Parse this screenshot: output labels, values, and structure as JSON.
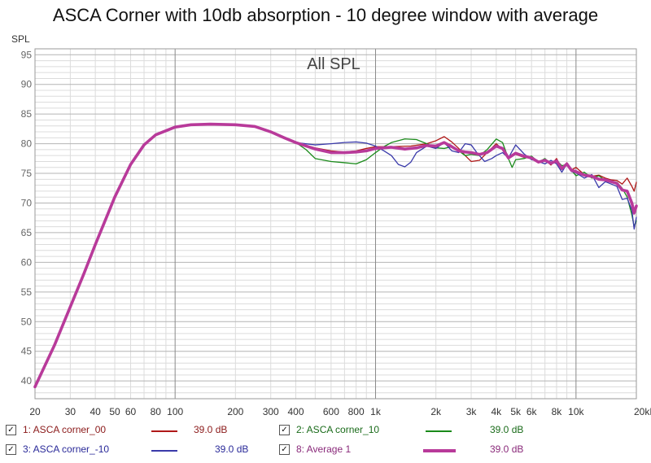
{
  "chart_data": {
    "type": "line",
    "title": "ASCA Corner with 10db absorption - 10 degree window with average",
    "inner_title": "All SPL",
    "ylabel": "SPL",
    "xscale": "log",
    "xlim": [
      20,
      20000
    ],
    "ylim": [
      37,
      96
    ],
    "grid": true,
    "yticks": [
      40,
      45,
      50,
      55,
      60,
      65,
      70,
      75,
      80,
      85,
      90,
      95
    ],
    "ytick_labels": [
      "40",
      "45",
      "50",
      "55",
      "60",
      "65",
      "70",
      "75",
      "80",
      "85",
      "90",
      "95"
    ],
    "xticks": [
      20,
      30,
      40,
      50,
      60,
      80,
      100,
      200,
      300,
      400,
      600,
      800,
      1000,
      2000,
      3000,
      4000,
      5000,
      6000,
      8000,
      10000,
      20000
    ],
    "xtick_labels": [
      "20",
      "30",
      "40",
      "50",
      "60",
      "80",
      "100",
      "200",
      "300",
      "400",
      "600",
      "800",
      "1k",
      "2k",
      "3k",
      "4k",
      "5k",
      "6k",
      "8k",
      "10k",
      "20kHz"
    ],
    "series": [
      {
        "name": "1: ASCA corner_00",
        "color": "#b01818",
        "width": 1.3,
        "points": [
          [
            20,
            39
          ],
          [
            25,
            46
          ],
          [
            30,
            52.5
          ],
          [
            35,
            58
          ],
          [
            40,
            63
          ],
          [
            50,
            71
          ],
          [
            60,
            76.5
          ],
          [
            70,
            79.8
          ],
          [
            80,
            81.5
          ],
          [
            100,
            82.8
          ],
          [
            120,
            83.2
          ],
          [
            150,
            83.3
          ],
          [
            200,
            83.2
          ],
          [
            250,
            82.9
          ],
          [
            300,
            82
          ],
          [
            350,
            81
          ],
          [
            400,
            80.2
          ],
          [
            500,
            79.3
          ],
          [
            600,
            78.8
          ],
          [
            700,
            78.6
          ],
          [
            800,
            78.8
          ],
          [
            900,
            79.2
          ],
          [
            1000,
            79.5
          ],
          [
            1200,
            79.5
          ],
          [
            1500,
            79.6
          ],
          [
            1800,
            80
          ],
          [
            2000,
            80.5
          ],
          [
            2200,
            81.2
          ],
          [
            2400,
            80.3
          ],
          [
            2600,
            79.2
          ],
          [
            2800,
            78
          ],
          [
            3000,
            77
          ],
          [
            3300,
            77.2
          ],
          [
            3600,
            78.5
          ],
          [
            4000,
            80
          ],
          [
            4300,
            79
          ],
          [
            4600,
            77.8
          ],
          [
            5000,
            78.2
          ],
          [
            5500,
            77.7
          ],
          [
            6000,
            77.6
          ],
          [
            6500,
            76.8
          ],
          [
            7000,
            77.3
          ],
          [
            7500,
            76.4
          ],
          [
            8000,
            77.5
          ],
          [
            8500,
            75.8
          ],
          [
            9000,
            76.8
          ],
          [
            9500,
            75.6
          ],
          [
            10000,
            76
          ],
          [
            11000,
            74.8
          ],
          [
            12000,
            74.5
          ],
          [
            13000,
            74.7
          ],
          [
            14000,
            74.2
          ],
          [
            15000,
            73.9
          ],
          [
            16000,
            73.8
          ],
          [
            17000,
            73.2
          ],
          [
            18000,
            74.2
          ],
          [
            19000,
            72.8
          ],
          [
            19500,
            72
          ],
          [
            20000,
            73.5
          ]
        ]
      },
      {
        "name": "2: ASCA corner_10",
        "color": "#1a8a1a",
        "width": 1.3,
        "points": [
          [
            20,
            39
          ],
          [
            25,
            46
          ],
          [
            30,
            52.5
          ],
          [
            35,
            58
          ],
          [
            40,
            63
          ],
          [
            50,
            71
          ],
          [
            60,
            76.5
          ],
          [
            70,
            79.8
          ],
          [
            80,
            81.5
          ],
          [
            100,
            82.8
          ],
          [
            120,
            83.2
          ],
          [
            150,
            83.3
          ],
          [
            200,
            83.2
          ],
          [
            250,
            82.9
          ],
          [
            300,
            82
          ],
          [
            350,
            81
          ],
          [
            400,
            80.2
          ],
          [
            450,
            79
          ],
          [
            500,
            77.5
          ],
          [
            600,
            77
          ],
          [
            700,
            76.8
          ],
          [
            800,
            76.6
          ],
          [
            900,
            77.3
          ],
          [
            1000,
            78.5
          ],
          [
            1100,
            79.5
          ],
          [
            1200,
            80.2
          ],
          [
            1400,
            80.8
          ],
          [
            1600,
            80.7
          ],
          [
            1800,
            80
          ],
          [
            2000,
            79.3
          ],
          [
            2200,
            79.2
          ],
          [
            2400,
            79.5
          ],
          [
            2600,
            78.8
          ],
          [
            2800,
            78
          ],
          [
            3000,
            78.2
          ],
          [
            3300,
            78
          ],
          [
            3600,
            79
          ],
          [
            4000,
            80.8
          ],
          [
            4300,
            80.2
          ],
          [
            4600,
            77.5
          ],
          [
            4800,
            76
          ],
          [
            5000,
            77.3
          ],
          [
            5500,
            77.5
          ],
          [
            6000,
            77.9
          ],
          [
            6500,
            76.9
          ],
          [
            7000,
            77.5
          ],
          [
            7500,
            76.6
          ],
          [
            8000,
            77.2
          ],
          [
            8500,
            76.3
          ],
          [
            9000,
            76.5
          ],
          [
            9500,
            75.5
          ],
          [
            10000,
            74.6
          ],
          [
            11000,
            75.2
          ],
          [
            12000,
            74.2
          ],
          [
            13000,
            74.6
          ],
          [
            14000,
            73.8
          ],
          [
            15000,
            73.6
          ],
          [
            16000,
            73.5
          ],
          [
            17000,
            72.5
          ],
          [
            18000,
            71
          ],
          [
            19000,
            68
          ],
          [
            19500,
            66
          ],
          [
            20000,
            67
          ]
        ]
      },
      {
        "name": "3: ASCA corner_-10",
        "color": "#3a3aaa",
        "width": 1.3,
        "points": [
          [
            20,
            39
          ],
          [
            25,
            46
          ],
          [
            30,
            52.5
          ],
          [
            35,
            58
          ],
          [
            40,
            63
          ],
          [
            50,
            71
          ],
          [
            60,
            76.5
          ],
          [
            70,
            79.8
          ],
          [
            80,
            81.5
          ],
          [
            100,
            82.8
          ],
          [
            120,
            83.2
          ],
          [
            150,
            83.3
          ],
          [
            200,
            83.2
          ],
          [
            250,
            82.9
          ],
          [
            300,
            82
          ],
          [
            350,
            81
          ],
          [
            400,
            80.2
          ],
          [
            500,
            79.8
          ],
          [
            600,
            80
          ],
          [
            700,
            80.2
          ],
          [
            800,
            80.3
          ],
          [
            900,
            80.1
          ],
          [
            1000,
            79.6
          ],
          [
            1100,
            78.8
          ],
          [
            1200,
            78
          ],
          [
            1300,
            76.5
          ],
          [
            1400,
            76.1
          ],
          [
            1500,
            76.9
          ],
          [
            1600,
            78.5
          ],
          [
            1800,
            79.6
          ],
          [
            2000,
            79.2
          ],
          [
            2200,
            80.2
          ],
          [
            2400,
            78.8
          ],
          [
            2600,
            78.5
          ],
          [
            2800,
            80
          ],
          [
            3000,
            79.8
          ],
          [
            3200,
            78.5
          ],
          [
            3500,
            77
          ],
          [
            3800,
            77.5
          ],
          [
            4000,
            78
          ],
          [
            4300,
            78.5
          ],
          [
            4600,
            77.6
          ],
          [
            5000,
            79.8
          ],
          [
            5500,
            78.3
          ],
          [
            6000,
            77.3
          ],
          [
            6500,
            77
          ],
          [
            7000,
            76.6
          ],
          [
            7500,
            77.2
          ],
          [
            8000,
            76.6
          ],
          [
            8500,
            75.2
          ],
          [
            9000,
            76.6
          ],
          [
            9500,
            75.3
          ],
          [
            10000,
            75.1
          ],
          [
            11000,
            74.2
          ],
          [
            12000,
            74.8
          ],
          [
            13000,
            72.6
          ],
          [
            14000,
            73.6
          ],
          [
            15000,
            73.2
          ],
          [
            16000,
            72.8
          ],
          [
            17000,
            70.6
          ],
          [
            18000,
            70.8
          ],
          [
            19000,
            68.8
          ],
          [
            19500,
            65.6
          ],
          [
            20000,
            67.6
          ]
        ]
      },
      {
        "name": "8: Average 1",
        "color": "#b83a9a",
        "width": 3.6,
        "points": [
          [
            20,
            39
          ],
          [
            25,
            46
          ],
          [
            30,
            52.5
          ],
          [
            35,
            58
          ],
          [
            40,
            63
          ],
          [
            50,
            71
          ],
          [
            60,
            76.5
          ],
          [
            70,
            79.8
          ],
          [
            80,
            81.5
          ],
          [
            100,
            82.8
          ],
          [
            120,
            83.2
          ],
          [
            150,
            83.3
          ],
          [
            200,
            83.2
          ],
          [
            250,
            82.9
          ],
          [
            300,
            82
          ],
          [
            350,
            81
          ],
          [
            400,
            80.2
          ],
          [
            500,
            79.1
          ],
          [
            600,
            78.5
          ],
          [
            700,
            78.5
          ],
          [
            800,
            78.6
          ],
          [
            900,
            78.8
          ],
          [
            1000,
            79.2
          ],
          [
            1200,
            79.4
          ],
          [
            1400,
            79.1
          ],
          [
            1600,
            79.3
          ],
          [
            1800,
            79.7
          ],
          [
            2000,
            79.6
          ],
          [
            2200,
            80.2
          ],
          [
            2400,
            79.5
          ],
          [
            2600,
            78.8
          ],
          [
            2800,
            78.6
          ],
          [
            3000,
            78.5
          ],
          [
            3300,
            78.2
          ],
          [
            3600,
            78.5
          ],
          [
            4000,
            79.6
          ],
          [
            4300,
            79.2
          ],
          [
            4600,
            77.6
          ],
          [
            5000,
            78.4
          ],
          [
            5500,
            77.9
          ],
          [
            6000,
            77.6
          ],
          [
            6500,
            76.9
          ],
          [
            7000,
            77.2
          ],
          [
            7500,
            76.7
          ],
          [
            8000,
            77.1
          ],
          [
            8500,
            75.8
          ],
          [
            9000,
            76.6
          ],
          [
            9500,
            75.5
          ],
          [
            10000,
            75.3
          ],
          [
            11000,
            74.7
          ],
          [
            12000,
            74.5
          ],
          [
            13000,
            74
          ],
          [
            14000,
            73.9
          ],
          [
            15000,
            73.6
          ],
          [
            16000,
            73.3
          ],
          [
            17000,
            72.2
          ],
          [
            18000,
            72
          ],
          [
            19000,
            70
          ],
          [
            19500,
            68.3
          ],
          [
            20000,
            69.5
          ]
        ]
      }
    ]
  },
  "legend": [
    {
      "check": "✓",
      "label": "1: ASCA corner_00",
      "value": "39.0 dB",
      "color": "#b01818",
      "label_color": "#8b1a1a"
    },
    {
      "check": "✓",
      "label": "2: ASCA corner_10",
      "value": "39.0 dB",
      "color": "#1a8a1a",
      "label_color": "#1a6b1a"
    },
    {
      "check": "✓",
      "label": "3: ASCA corner_-10",
      "value": "39.0 dB",
      "color": "#3a3aaa",
      "label_color": "#2a2a99"
    },
    {
      "check": "✓",
      "label": "8: Average 1",
      "value": "39.0 dB",
      "color": "#b83a9a",
      "label_color": "#8a2a7a"
    }
  ],
  "colors": {
    "grid_major": "#8a8a8a",
    "grid_minor": "#dcdcdc",
    "plot_border": "#9a9a9a",
    "text": "#333333",
    "axis_text": "#666666"
  }
}
